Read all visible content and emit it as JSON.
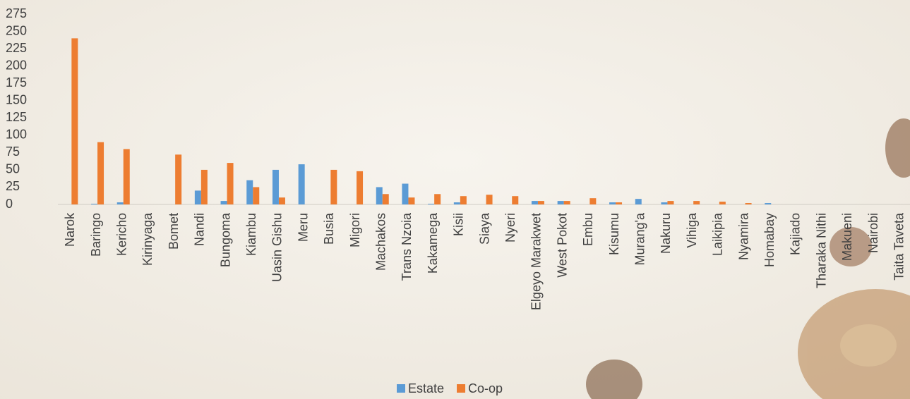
{
  "chart_data": {
    "type": "bar",
    "categories": [
      "Narok",
      "Baringo",
      "Kericho",
      "Kirinyaga",
      "Bomet",
      "Nandi",
      "Bungoma",
      "Kiambu",
      "Uasin Gishu",
      "Meru",
      "Busia",
      "Migori",
      "Machakos",
      "Trans Nzoia",
      "Kakamega",
      "Kisii",
      "Siaya",
      "Nyeri",
      "Elgeyo Marakwet",
      "West Pokot",
      "Embu",
      "Kisumu",
      "Murang'a",
      "Nakuru",
      "Vihiga",
      "Laikipia",
      "Nyamira",
      "Homabay",
      "Kajiado",
      "Tharaka Nithi",
      "Makueni",
      "Nairobi",
      "Taita Taveta"
    ],
    "series": [
      {
        "name": "Estate",
        "color": "#5b9bd5",
        "values": [
          0,
          1,
          3,
          0,
          0,
          20,
          5,
          35,
          50,
          58,
          0,
          0,
          25,
          30,
          1,
          3,
          0,
          0,
          5,
          5,
          0,
          3,
          8,
          3,
          0,
          0,
          0,
          2,
          0,
          0,
          0,
          0,
          0
        ]
      },
      {
        "name": "Co-op",
        "color": "#ed7d31",
        "values": [
          240,
          90,
          80,
          0,
          72,
          50,
          60,
          25,
          10,
          0,
          50,
          48,
          15,
          10,
          15,
          12,
          14,
          12,
          5,
          5,
          9,
          3,
          0,
          5,
          5,
          4,
          2,
          0,
          0,
          0,
          0,
          0,
          0
        ]
      }
    ],
    "ylim": [
      0,
      275
    ],
    "yticks": [
      0,
      25,
      50,
      75,
      100,
      125,
      150,
      175,
      200,
      225,
      250,
      275
    ],
    "grid": false,
    "legend": "bottom"
  }
}
